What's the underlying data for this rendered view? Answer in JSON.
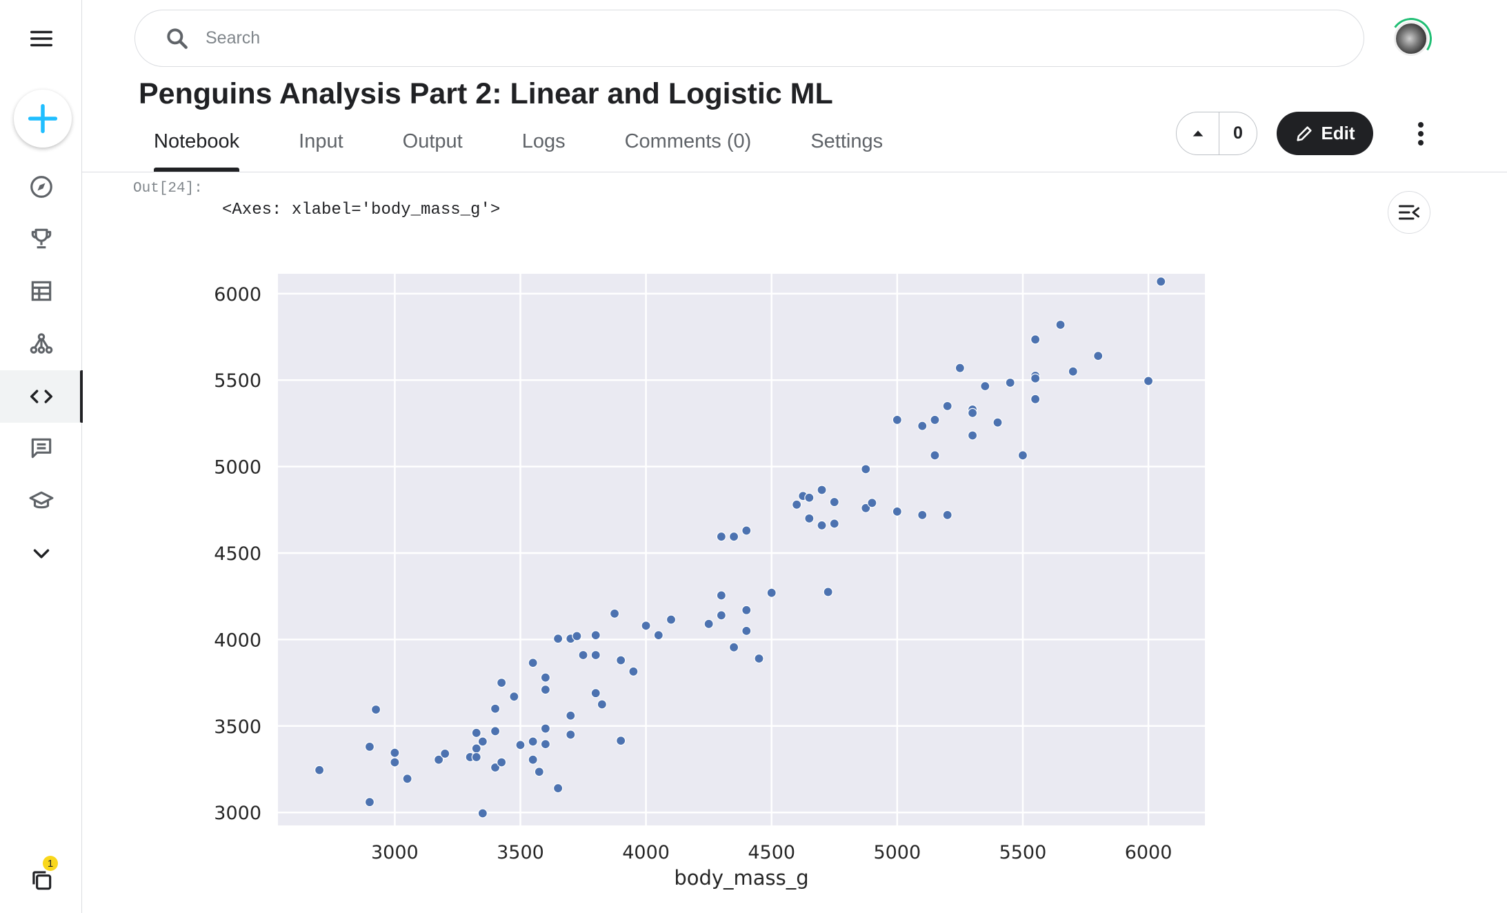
{
  "search": {
    "placeholder": "Search"
  },
  "notebook": {
    "title": "Penguins Analysis Part 2: Linear and Logistic ML"
  },
  "tabs": [
    {
      "label": "Notebook",
      "active": true
    },
    {
      "label": "Input"
    },
    {
      "label": "Output"
    },
    {
      "label": "Logs"
    },
    {
      "label": "Comments (0)"
    },
    {
      "label": "Settings"
    }
  ],
  "vote": {
    "count": "0"
  },
  "toolbar": {
    "edit_label": "Edit"
  },
  "sidebar": {
    "items": [
      "menu-icon",
      "create-icon",
      "compass-icon",
      "trophy-icon",
      "table-icon",
      "models-icon",
      "code-icon",
      "comments-icon",
      "learn-icon",
      "chevron-down-icon",
      "your-work-icon"
    ],
    "active": "code-icon",
    "notification_count": "1",
    "accent": "#20beff"
  },
  "cell": {
    "prompt": "Out[24]:",
    "text": "<Axes: xlabel='body_mass_g'>"
  },
  "colors": {
    "marker": "#4c72b0",
    "plot_bg": "#eaeaf2",
    "grid": "#ffffff"
  },
  "chart_data": {
    "type": "scatter",
    "xlabel": "body_mass_g",
    "ylabel": "",
    "title": "",
    "xlim": [
      2535,
      6225
    ],
    "ylim": [
      2925,
      6115
    ],
    "xticks": [
      3000,
      3500,
      4000,
      4500,
      5000,
      5500,
      6000
    ],
    "yticks": [
      3000,
      3500,
      4000,
      4500,
      5000,
      5500,
      6000
    ],
    "grid": true,
    "series": [
      {
        "points": [
          [
            2700,
            3245
          ],
          [
            2900,
            3060
          ],
          [
            2900,
            3380
          ],
          [
            2925,
            3595
          ],
          [
            3000,
            3345
          ],
          [
            3000,
            3290
          ],
          [
            3050,
            3195
          ],
          [
            3175,
            3305
          ],
          [
            3200,
            3340
          ],
          [
            3300,
            3320
          ],
          [
            3325,
            3460
          ],
          [
            3325,
            3370
          ],
          [
            3325,
            3320
          ],
          [
            3350,
            3410
          ],
          [
            3350,
            2995
          ],
          [
            3400,
            3470
          ],
          [
            3400,
            3600
          ],
          [
            3400,
            3260
          ],
          [
            3425,
            3750
          ],
          [
            3425,
            3290
          ],
          [
            3475,
            3670
          ],
          [
            3500,
            3390
          ],
          [
            3550,
            3865
          ],
          [
            3550,
            3410
          ],
          [
            3550,
            3305
          ],
          [
            3575,
            3235
          ],
          [
            3600,
            3780
          ],
          [
            3600,
            3710
          ],
          [
            3600,
            3485
          ],
          [
            3600,
            3395
          ],
          [
            3650,
            4005
          ],
          [
            3650,
            3140
          ],
          [
            3700,
            4005
          ],
          [
            3700,
            3560
          ],
          [
            3700,
            3450
          ],
          [
            3725,
            4020
          ],
          [
            3750,
            3910
          ],
          [
            3800,
            4025
          ],
          [
            3800,
            3910
          ],
          [
            3800,
            3690
          ],
          [
            3825,
            3625
          ],
          [
            3875,
            4150
          ],
          [
            3900,
            3880
          ],
          [
            3900,
            3415
          ],
          [
            3950,
            3815
          ],
          [
            4000,
            4080
          ],
          [
            4050,
            4025
          ],
          [
            4100,
            4115
          ],
          [
            4250,
            4090
          ],
          [
            4300,
            4595
          ],
          [
            4300,
            4255
          ],
          [
            4300,
            4140
          ],
          [
            4350,
            4595
          ],
          [
            4350,
            3955
          ],
          [
            4400,
            4630
          ],
          [
            4400,
            4170
          ],
          [
            4400,
            4050
          ],
          [
            4450,
            3890
          ],
          [
            4500,
            4270
          ],
          [
            4600,
            4780
          ],
          [
            4625,
            4830
          ],
          [
            4650,
            4820
          ],
          [
            4650,
            4700
          ],
          [
            4700,
            4865
          ],
          [
            4700,
            4660
          ],
          [
            4725,
            4275
          ],
          [
            4750,
            4795
          ],
          [
            4750,
            4670
          ],
          [
            4875,
            4985
          ],
          [
            4875,
            4760
          ],
          [
            4900,
            4790
          ],
          [
            5000,
            5270
          ],
          [
            5000,
            4740
          ],
          [
            5100,
            5235
          ],
          [
            5100,
            4720
          ],
          [
            5150,
            5270
          ],
          [
            5150,
            5065
          ],
          [
            5200,
            5350
          ],
          [
            5200,
            4720
          ],
          [
            5250,
            5570
          ],
          [
            5300,
            5330
          ],
          [
            5300,
            5310
          ],
          [
            5300,
            5180
          ],
          [
            5350,
            5465
          ],
          [
            5400,
            5255
          ],
          [
            5450,
            5485
          ],
          [
            5500,
            5065
          ],
          [
            5550,
            5735
          ],
          [
            5550,
            5525
          ],
          [
            5550,
            5510
          ],
          [
            5550,
            5390
          ],
          [
            5650,
            5820
          ],
          [
            5700,
            5550
          ],
          [
            5800,
            5640
          ],
          [
            6000,
            5495
          ],
          [
            6050,
            6070
          ]
        ]
      }
    ]
  }
}
